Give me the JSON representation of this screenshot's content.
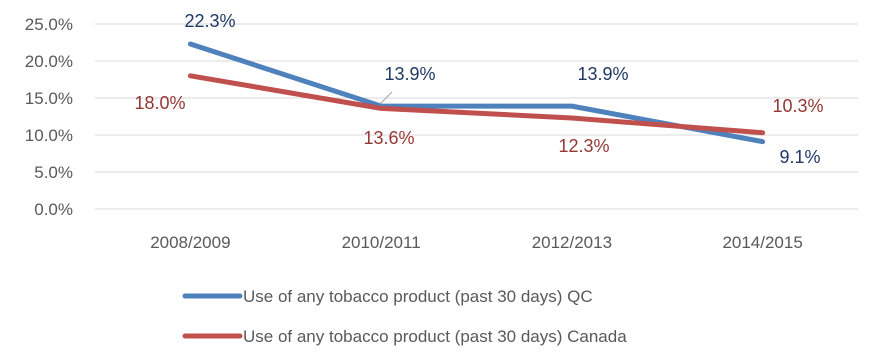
{
  "chart_data": {
    "type": "line",
    "title": "",
    "xlabel": "",
    "ylabel": "",
    "categories": [
      "2008/2009",
      "2010/2011",
      "2012/2013",
      "2014/2015"
    ],
    "y_ticks": [
      "0.0%",
      "5.0%",
      "10.0%",
      "15.0%",
      "20.0%",
      "25.0%"
    ],
    "ylim": [
      0,
      25
    ],
    "grid": true,
    "legend_position": "bottom",
    "series": [
      {
        "name": "Use of any tobacco product (past 30 days) QC",
        "color": "#4F81BD",
        "label_color": "#1F3864",
        "values": [
          22.3,
          13.9,
          13.9,
          9.1
        ],
        "labels": [
          "22.3%",
          "13.9%",
          "13.9%",
          "9.1%"
        ]
      },
      {
        "name": "Use of any tobacco product (past 30 days) Canada",
        "color": "#C0504D",
        "label_color": "#943634",
        "values": [
          18.0,
          13.6,
          12.3,
          10.3
        ],
        "labels": [
          "18.0%",
          "13.6%",
          "12.3%",
          "10.3%"
        ]
      }
    ]
  }
}
